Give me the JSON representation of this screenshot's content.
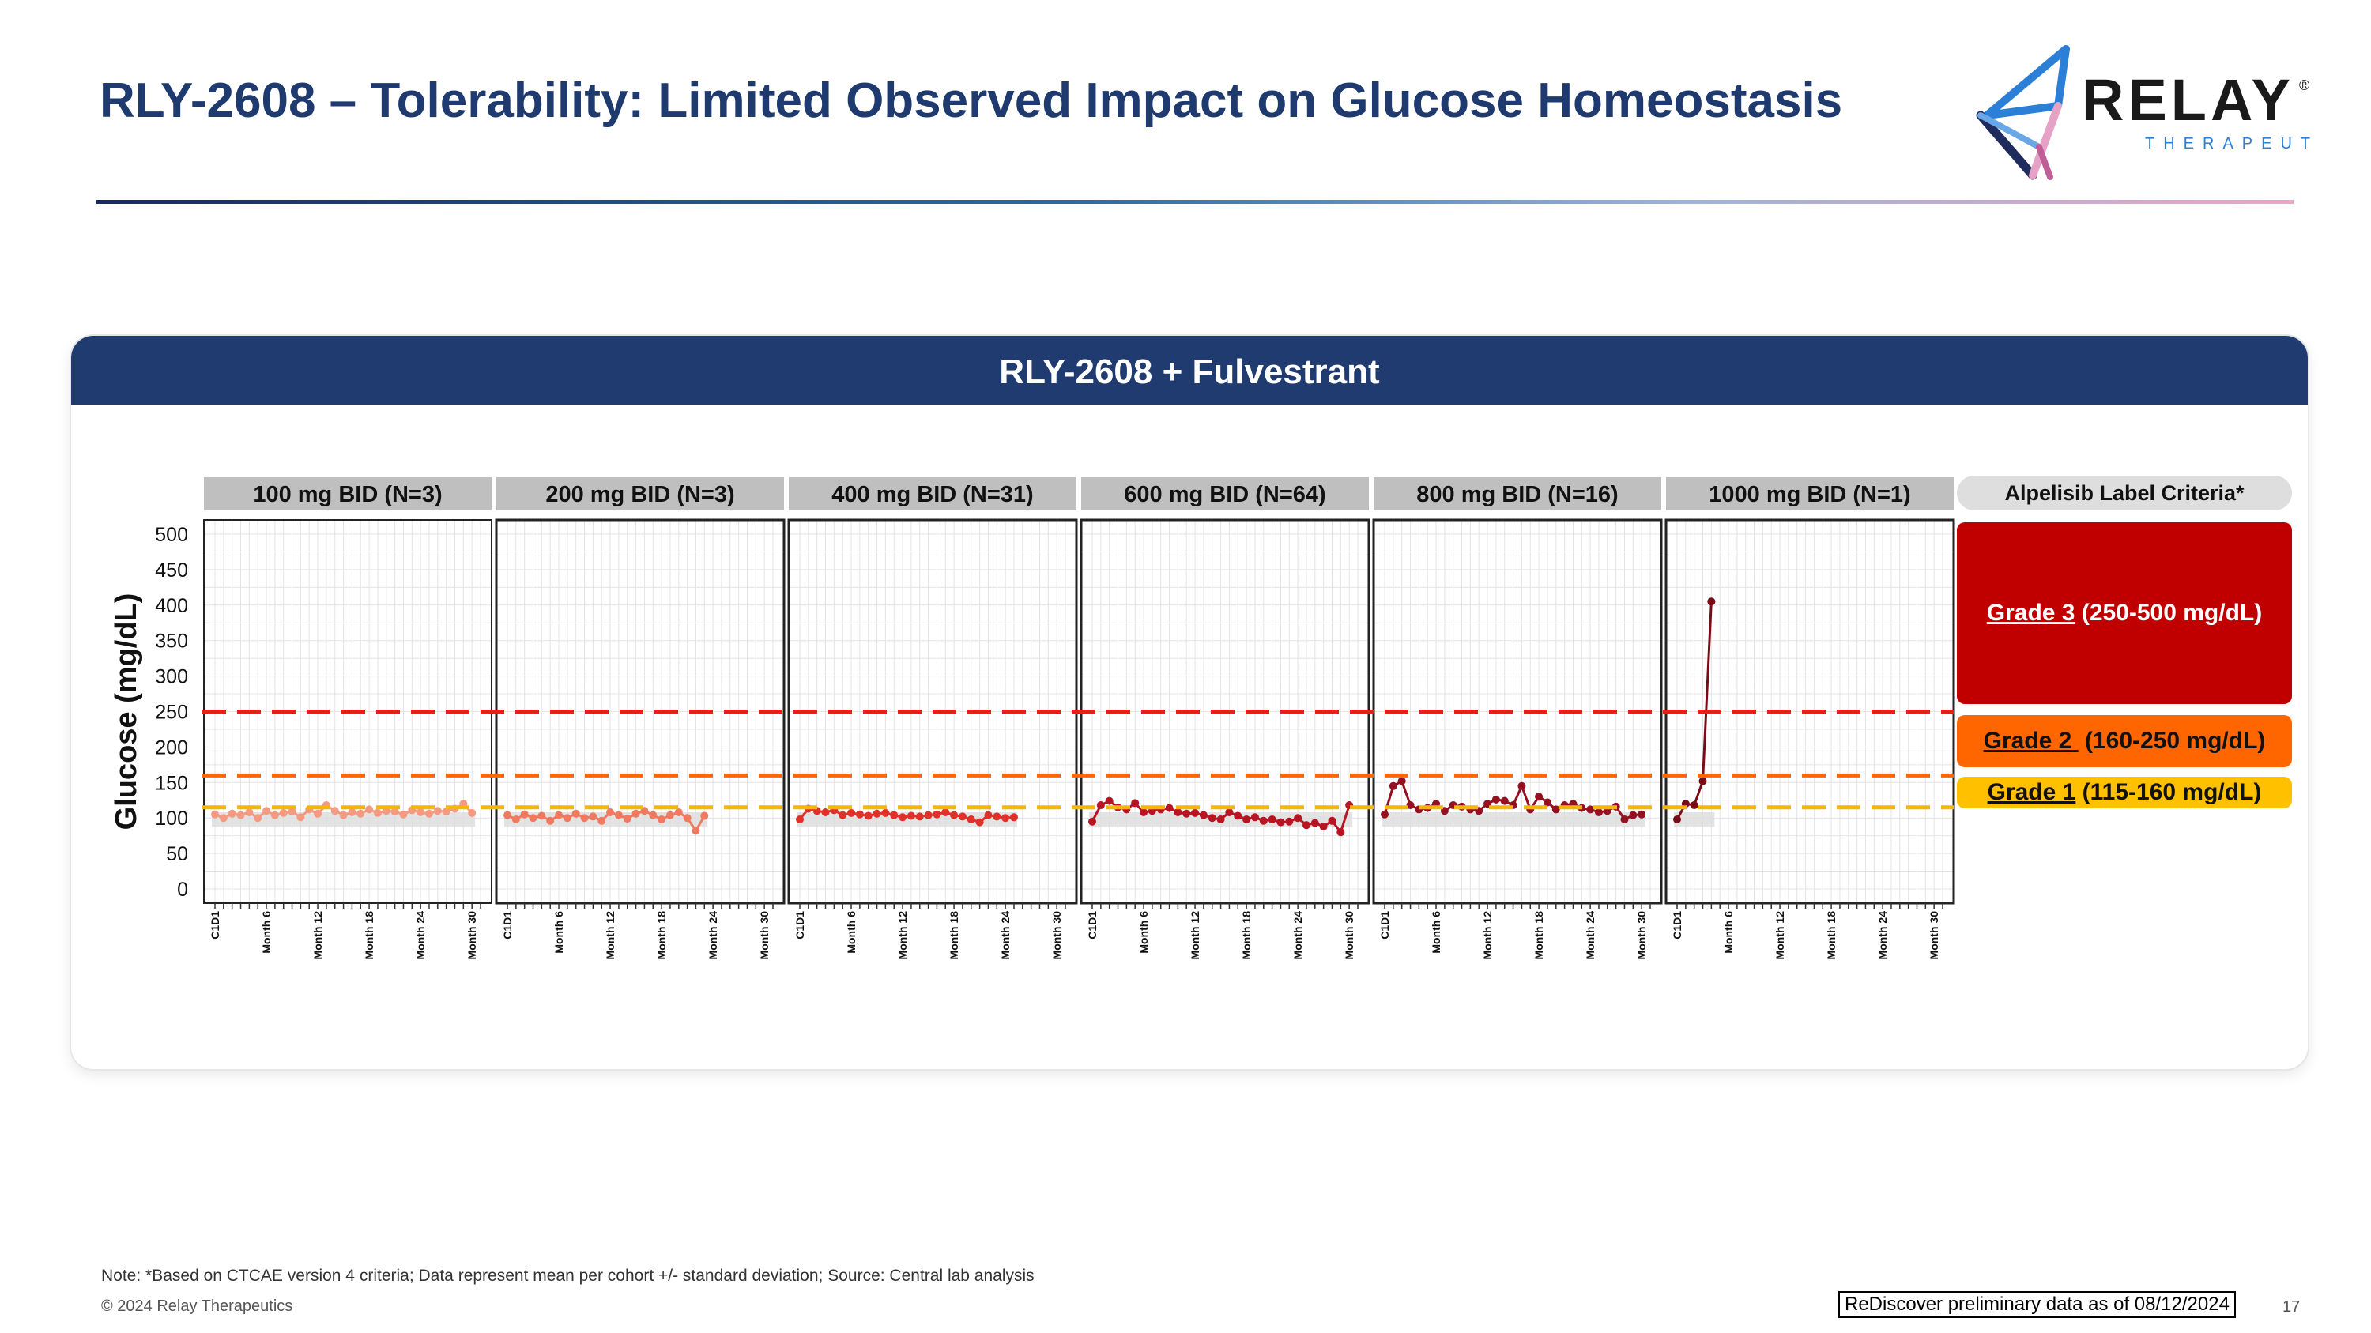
{
  "slide": {
    "title": "RLY-2608 – Tolerability: Limited Observed Impact on Glucose Homeostasis",
    "logo": {
      "name": "RELAY",
      "sub": "THERAPEUTICS",
      "mark": "®"
    },
    "panel_title": "RLY-2608 + Fulvestrant",
    "note": "Note: *Based on CTCAE version 4 criteria; Data represent mean per cohort +/- standard deviation; Source: Central lab analysis",
    "copyright": "© 2024 Relay Therapeutics",
    "data_date": "ReDiscover preliminary data as of 08/12/2024",
    "page_number": "17"
  },
  "criteria": {
    "header": "Alpelisib Label Criteria*",
    "grades": [
      {
        "grade": "Grade 3",
        "range": " (250-500 mg/dL)",
        "color": "#c00000"
      },
      {
        "grade": "Grade 2 ",
        "range": " (160-250 mg/dL)",
        "color": "#ff6600"
      },
      {
        "grade": "Grade 1",
        "range": " (115-160 mg/dL)",
        "color": "#ffc000"
      }
    ]
  },
  "chart_data": {
    "type": "line",
    "ylabel": "Glucose (mg/dL)",
    "ylim": [
      0,
      500
    ],
    "yticks": [
      0,
      50,
      100,
      150,
      200,
      250,
      300,
      350,
      400,
      450,
      500
    ],
    "xlim": [
      0,
      31
    ],
    "xticks": [
      {
        "label": "C1D1",
        "x": 0
      },
      {
        "label": "Month 6",
        "x": 6
      },
      {
        "label": "Month 12",
        "x": 12
      },
      {
        "label": "Month 18",
        "x": 18
      },
      {
        "label": "Month 24",
        "x": 24
      },
      {
        "label": "Month 30",
        "x": 30
      }
    ],
    "thresholds": [
      {
        "name": "Grade 3",
        "value": 250,
        "color": "#e32020"
      },
      {
        "name": "Grade 2",
        "value": 160,
        "color": "#ff6600"
      },
      {
        "name": "Grade 1",
        "value": 115,
        "color": "#f5b800"
      }
    ],
    "normal_band": [
      88,
      108
    ],
    "panels": [
      {
        "label": "100 mg BID (N=3)",
        "color": "#f49a82",
        "x": [
          0,
          1,
          2,
          3,
          4,
          5,
          6,
          7,
          8,
          9,
          10,
          11,
          12,
          13,
          14,
          15,
          16,
          17,
          18,
          19,
          20,
          21,
          22,
          23,
          24,
          25,
          26,
          27,
          28,
          29,
          30
        ],
        "y": [
          105,
          100,
          106,
          104,
          108,
          100,
          110,
          104,
          107,
          109,
          101,
          112,
          106,
          118,
          110,
          104,
          108,
          106,
          112,
          107,
          110,
          109,
          105,
          111,
          108,
          106,
          110,
          109,
          113,
          120,
          107
        ]
      },
      {
        "label": "200 mg BID (N=3)",
        "color": "#f07a60",
        "x": [
          0,
          1,
          2,
          3,
          4,
          5,
          6,
          7,
          8,
          9,
          10,
          11,
          12,
          13,
          14,
          15,
          16,
          17,
          18,
          19,
          20,
          21,
          22,
          23
        ],
        "y": [
          104,
          98,
          105,
          100,
          103,
          96,
          104,
          100,
          106,
          100,
          102,
          96,
          108,
          104,
          99,
          106,
          110,
          104,
          98,
          104,
          108,
          100,
          82,
          103
        ]
      },
      {
        "label": "400 mg BID (N=31)",
        "color": "#e0302a",
        "x": [
          0,
          1,
          2,
          3,
          4,
          5,
          6,
          7,
          8,
          9,
          10,
          11,
          12,
          13,
          14,
          15,
          16,
          17,
          18,
          19,
          20,
          21,
          22,
          23,
          24,
          25
        ],
        "y": [
          98,
          113,
          110,
          108,
          111,
          104,
          107,
          105,
          103,
          106,
          107,
          104,
          101,
          103,
          102,
          104,
          105,
          108,
          104,
          102,
          98,
          94,
          104,
          102,
          100,
          101
        ]
      },
      {
        "label": "600 mg BID (N=64)",
        "color": "#b81422",
        "x": [
          0,
          1,
          2,
          3,
          4,
          5,
          6,
          7,
          8,
          9,
          10,
          11,
          12,
          13,
          14,
          15,
          16,
          17,
          18,
          19,
          20,
          21,
          22,
          23,
          24,
          25,
          26,
          27,
          28,
          29,
          30
        ],
        "y": [
          95,
          118,
          124,
          115,
          112,
          121,
          108,
          110,
          112,
          114,
          108,
          106,
          107,
          104,
          100,
          98,
          108,
          103,
          98,
          101,
          96,
          98,
          94,
          95,
          100,
          90,
          93,
          88,
          96,
          80,
          118
        ]
      },
      {
        "label": "800 mg BID (N=16)",
        "color": "#951020",
        "x": [
          0,
          1,
          2,
          3,
          4,
          5,
          6,
          7,
          8,
          9,
          10,
          11,
          12,
          13,
          14,
          15,
          16,
          17,
          18,
          19,
          20,
          21,
          22,
          23,
          24,
          25,
          26,
          27,
          28,
          29,
          30
        ],
        "y": [
          105,
          145,
          152,
          118,
          112,
          114,
          120,
          110,
          118,
          116,
          112,
          110,
          120,
          126,
          124,
          118,
          145,
          112,
          130,
          122,
          112,
          118,
          120,
          114,
          112,
          108,
          110,
          116,
          98,
          104,
          105
        ]
      },
      {
        "label": "1000 mg BID (N=1)",
        "color": "#7a0c18",
        "x": [
          0,
          1,
          2,
          3,
          4
        ],
        "y": [
          98,
          120,
          118,
          152,
          405
        ]
      }
    ]
  }
}
